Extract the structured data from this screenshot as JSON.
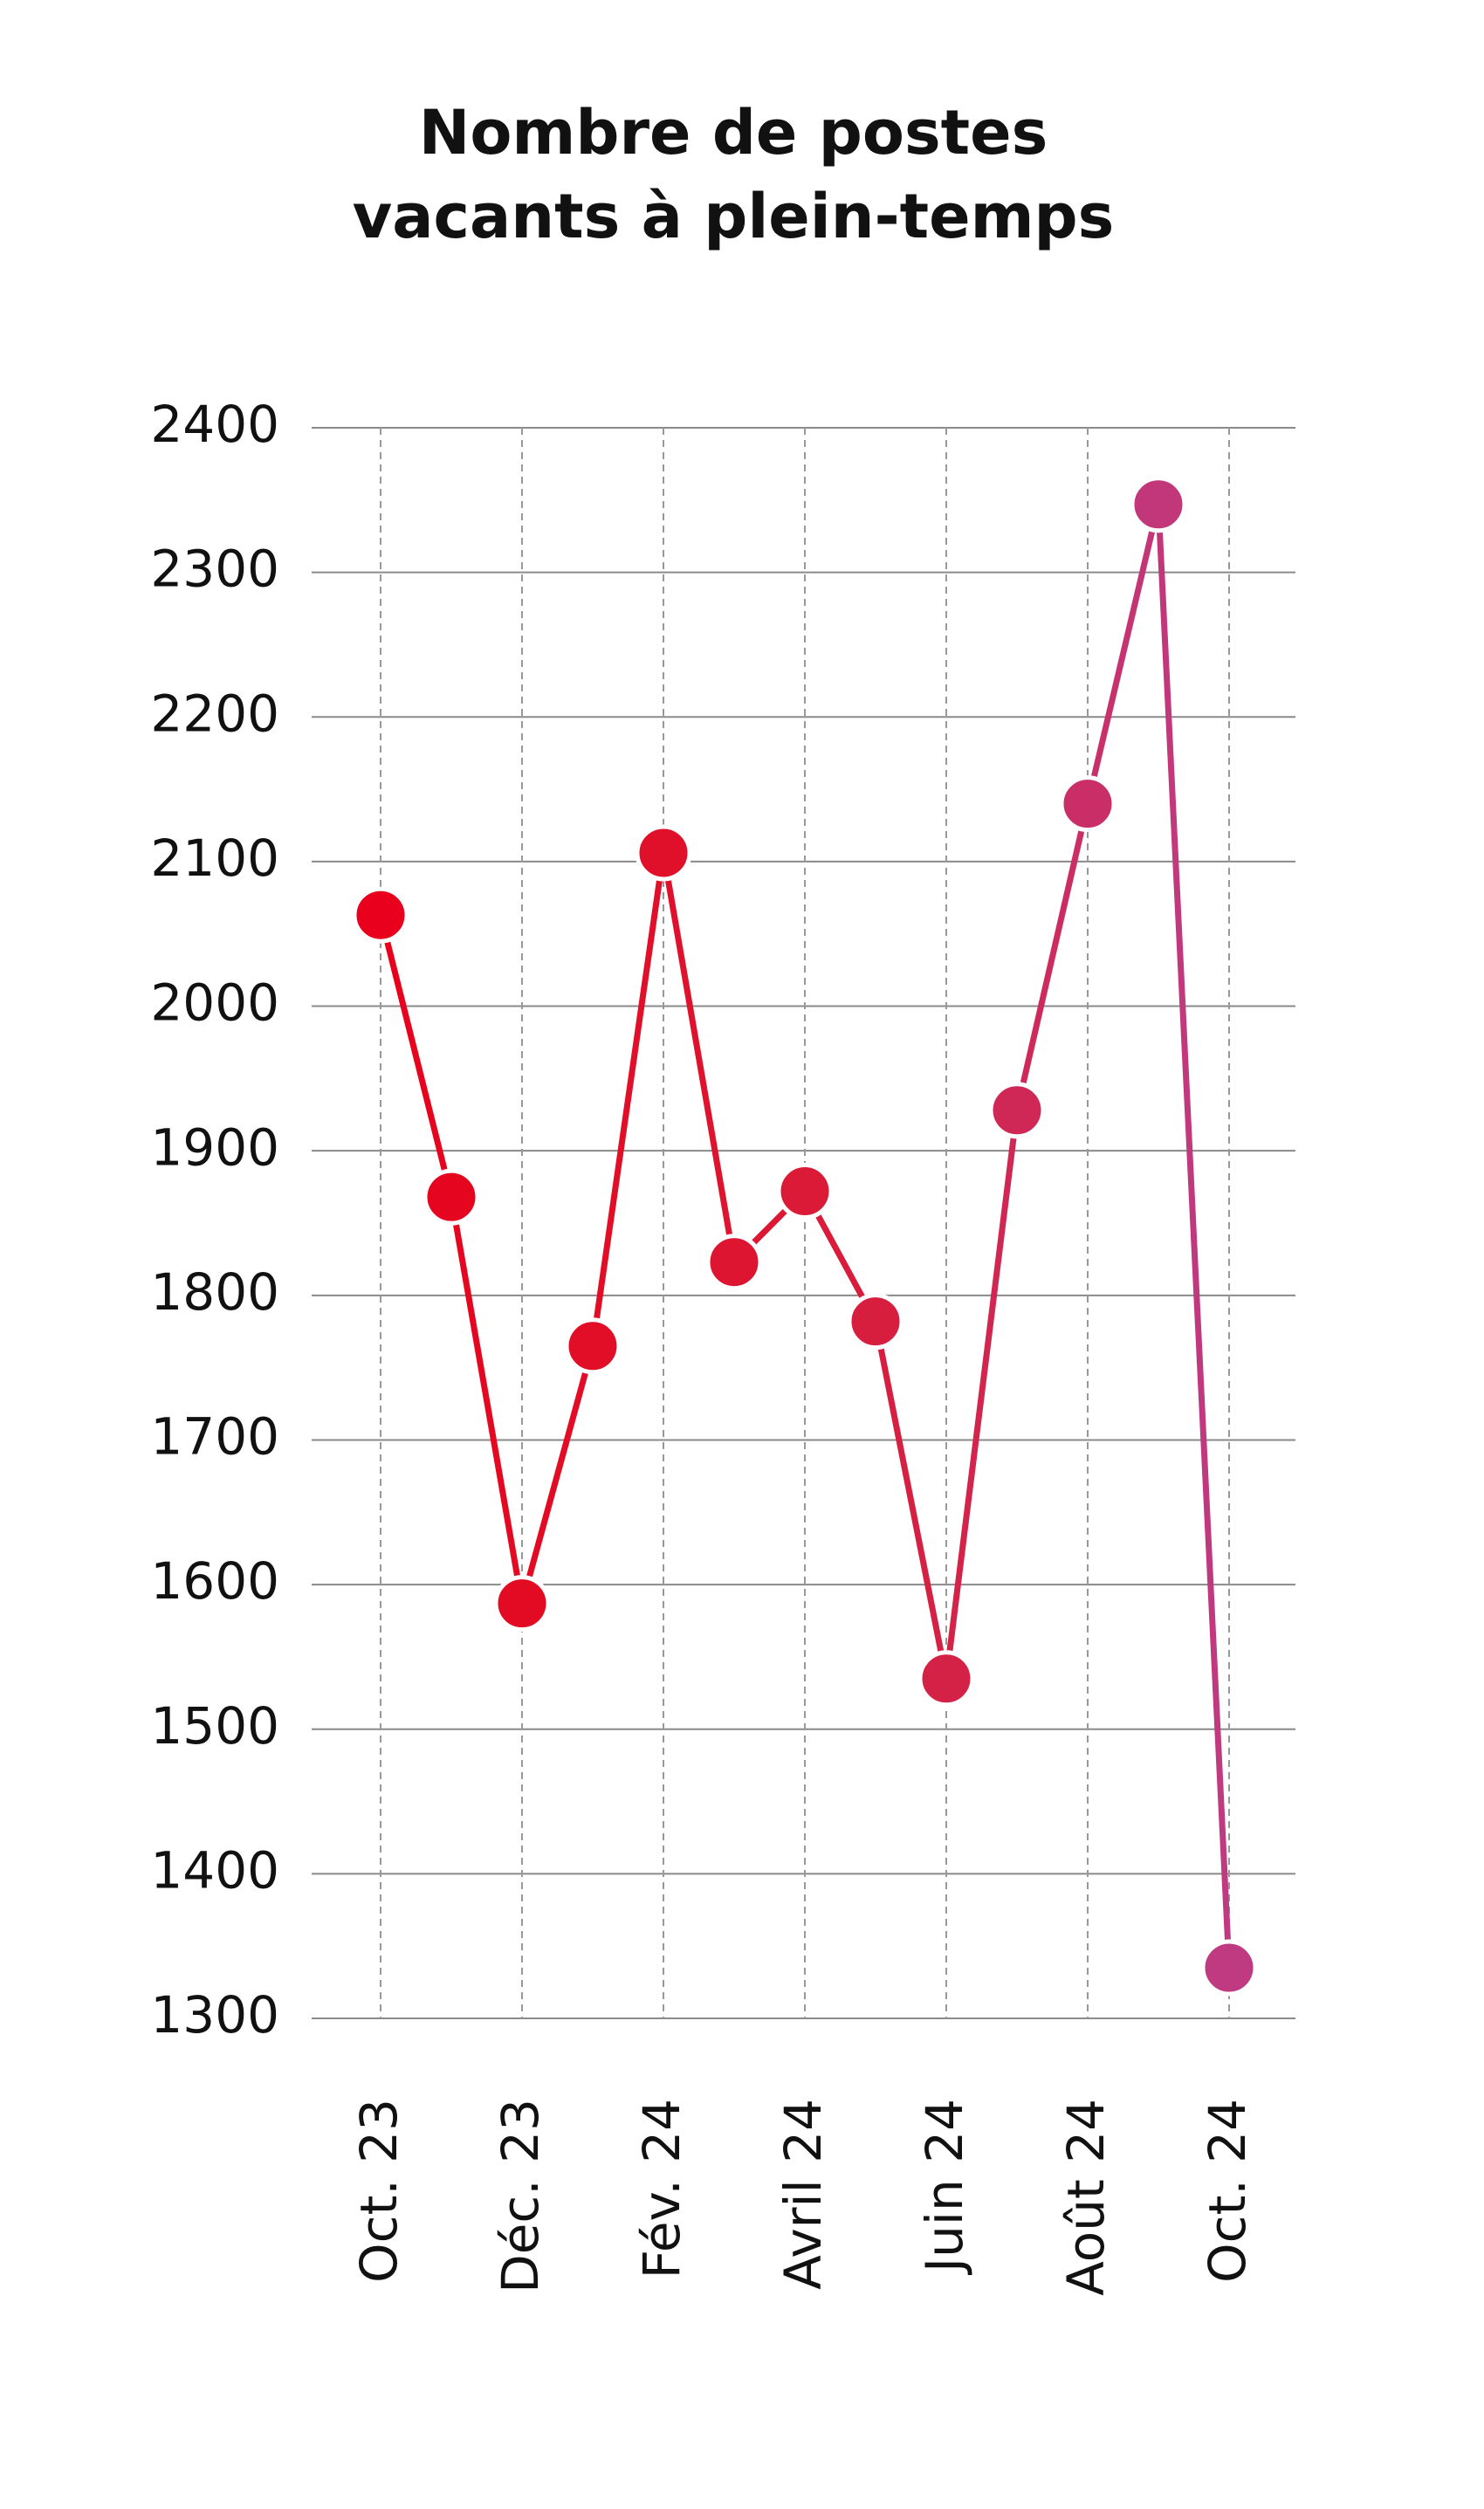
{
  "chart_data": {
    "type": "line",
    "title": [
      "Nombre de postes",
      "vacants à plein-temps"
    ],
    "categories": [
      "Oct. 23",
      null,
      "Déc. 23",
      null,
      "Fév. 24",
      null,
      "Avril 24",
      null,
      "Juin 24",
      null,
      "Août 24",
      null,
      "Oct. 24"
    ],
    "series": [
      {
        "values": [
          2063,
          1868,
          1587,
          1765,
          2106,
          1823,
          1872,
          1782,
          1535,
          1928,
          2140,
          2347,
          1335
        ],
        "colors": [
          "#e8001c",
          "#e6051f",
          "#e30a23",
          "#e20d27",
          "#e0102b",
          "#de1530",
          "#db1a37",
          "#d71e3f",
          "#d42246",
          "#cf2857",
          "#c92f66",
          "#c2377a",
          "#bf3a80"
        ]
      }
    ],
    "ylim": [
      1300,
      2400
    ],
    "yticks": [
      1300,
      1400,
      1500,
      1600,
      1700,
      1800,
      1900,
      2000,
      2100,
      2200,
      2300,
      2400
    ],
    "grid": true
  }
}
